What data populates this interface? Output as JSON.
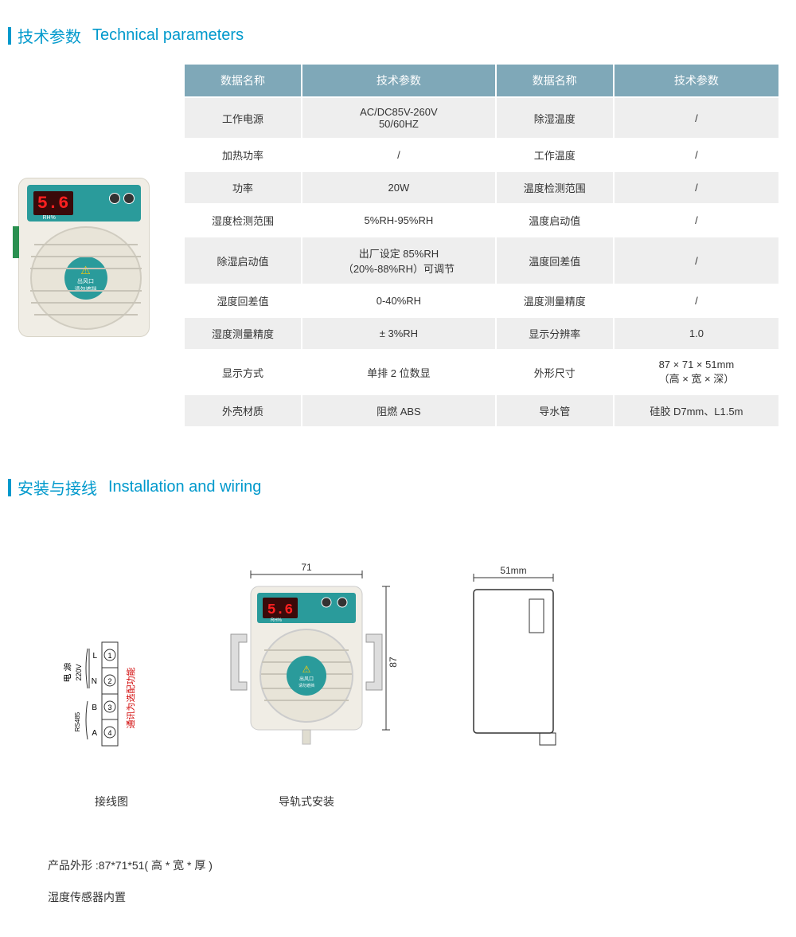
{
  "section1": {
    "title_cn": "技术参数",
    "title_en": "Technical parameters"
  },
  "device": {
    "display_value": "5.6",
    "rh_label": "RH%",
    "fan_label1": "出风口",
    "fan_label2": "请勿遮挡"
  },
  "table": {
    "headers": [
      "数据名称",
      "技术参数",
      "数据名称",
      "技术参数"
    ],
    "rows": [
      [
        "工作电源",
        "AC/DC85V-260V\n50/60HZ",
        "除湿温度",
        "/"
      ],
      [
        "加热功率",
        "/",
        "工作温度",
        "/"
      ],
      [
        "功率",
        "20W",
        "温度检测范围",
        "/"
      ],
      [
        "湿度检测范围",
        "5%RH-95%RH",
        "温度启动值",
        "/"
      ],
      [
        "除湿启动值",
        "出厂设定 85%RH\n（20%-88%RH）可调节",
        "温度回差值",
        "/"
      ],
      [
        "湿度回差值",
        "0-40%RH",
        "温度测量精度",
        "/"
      ],
      [
        "湿度测量精度",
        "± 3%RH",
        "显示分辨率",
        "1.0"
      ],
      [
        "显示方式",
        "单排 2 位数显",
        "外形尺寸",
        "87 × 71 × 51mm\n（高 × 宽 × 深）"
      ],
      [
        "外壳材质",
        "阻燃 ABS",
        "导水管",
        "硅胶 D7mm、L1.5m"
      ]
    ]
  },
  "section2": {
    "title_cn": "安装与接线",
    "title_en": "Installation and wiring"
  },
  "diagrams": {
    "wiring_label": "接线图",
    "mounting_label": "导轨式安装",
    "dim_width": "71",
    "dim_height": "87",
    "dim_depth": "51mm",
    "wiring_note": "通讯为选配功能",
    "wiring_power": "电 源",
    "wiring_220v": "220V",
    "wiring_rs485": "RS485",
    "terminals": [
      "L",
      "N",
      "B",
      "A"
    ],
    "terminal_nums": [
      "1",
      "2",
      "3",
      "4"
    ]
  },
  "footer": {
    "line1": "产品外形 :87*71*51( 高 * 宽 * 厚 )",
    "line2": "湿度传感器内置"
  },
  "colors": {
    "accent": "#0099cc",
    "table_header": "#7fa8b8",
    "table_alt": "#eeeeee",
    "device_body": "#f0ede5",
    "device_teal": "#2a9b9b",
    "led_red": "#ff2020",
    "note_red": "#d00000"
  }
}
